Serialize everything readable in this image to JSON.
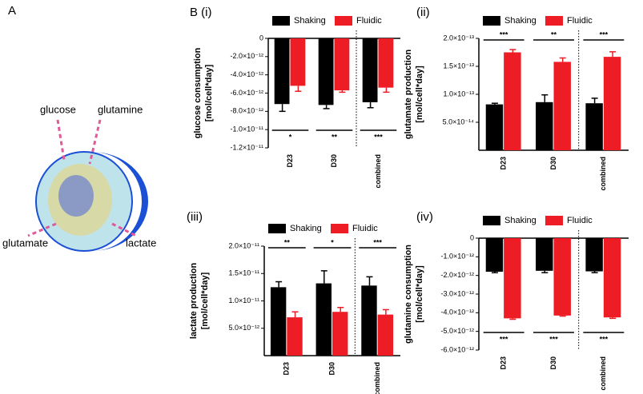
{
  "diagram": {
    "panel_label": "A",
    "inputs": [
      "glucose",
      "glutamine"
    ],
    "outputs": [
      "glutamate",
      "lactate"
    ]
  },
  "chart_data": [
    {
      "type": "bar",
      "panel_label": "B (i)",
      "ylabel": [
        "glucose consumption",
        "[mol/cell*day]"
      ],
      "categories": [
        "D23",
        "D30",
        "combined"
      ],
      "series": [
        {
          "name": "Shaking",
          "color": "#000000",
          "values": [
            -7.2e-12,
            -7.3e-12,
            -7e-12
          ],
          "errors": [
            8e-13,
            4e-13,
            6e-13
          ]
        },
        {
          "name": "Fluidic",
          "color": "#ee1c25",
          "values": [
            -5.2e-12,
            -5.7e-12,
            -5.4e-12
          ],
          "errors": [
            6e-13,
            2e-13,
            5e-13
          ]
        }
      ],
      "annotations": [
        "*",
        "**",
        "***"
      ],
      "ylim": [
        -1.2e-11,
        0
      ],
      "yticks": [
        0,
        {
          "value": -2e-12,
          "label": "-2.0×10⁻¹²"
        },
        {
          "value": -4e-12,
          "label": "-4.0×10⁻¹²"
        },
        {
          "value": -6e-12,
          "label": "-6.0×10⁻¹²"
        },
        {
          "value": -8e-12,
          "label": "-8.0×10⁻¹²"
        },
        {
          "value": -1e-11,
          "label": "-1.0×10⁻¹¹"
        },
        {
          "value": -1.2e-11,
          "label": "-1.2×10⁻¹¹"
        }
      ]
    },
    {
      "type": "bar",
      "panel_label": "(ii)",
      "ylabel": [
        "glutamate production",
        "[mol/cell*day]"
      ],
      "categories": [
        "D23",
        "D30",
        "combined"
      ],
      "series": [
        {
          "name": "Shaking",
          "color": "#000000",
          "values": [
            8.2e-14,
            8.6e-14,
            8.4e-14
          ],
          "errors": [
            2e-15,
            1.3e-14,
            9e-15
          ]
        },
        {
          "name": "Fluidic",
          "color": "#ee1c25",
          "values": [
            1.75e-13,
            1.58e-13,
            1.67e-13
          ],
          "errors": [
            5e-15,
            7e-15,
            9e-15
          ]
        }
      ],
      "annotations": [
        "***",
        "**",
        "***"
      ],
      "ylim": [
        0,
        2e-13
      ],
      "yticks": [
        {
          "value": 5e-14,
          "label": "5.0×10⁻¹⁴"
        },
        {
          "value": 1e-13,
          "label": "1.0×10⁻¹³"
        },
        {
          "value": 1.5e-13,
          "label": "1.5×10⁻¹³"
        },
        {
          "value": 2e-13,
          "label": "2.0×10⁻¹³"
        }
      ]
    },
    {
      "type": "bar",
      "panel_label": "(iii)",
      "ylabel": [
        "lactate production",
        "[mol/cell*day]"
      ],
      "categories": [
        "D23",
        "D30",
        "combined"
      ],
      "series": [
        {
          "name": "Shaking",
          "color": "#000000",
          "values": [
            1.25e-11,
            1.32e-11,
            1.28e-11
          ],
          "errors": [
            1e-12,
            2.3e-12,
            1.6e-12
          ]
        },
        {
          "name": "Fluidic",
          "color": "#ee1c25",
          "values": [
            7e-12,
            8e-12,
            7.5e-12
          ],
          "errors": [
            1e-12,
            8e-13,
            9e-13
          ]
        }
      ],
      "annotations": [
        "**",
        "*",
        "***"
      ],
      "ylim": [
        0,
        2e-11
      ],
      "yticks": [
        {
          "value": 5e-12,
          "label": "5.0×10⁻¹²"
        },
        {
          "value": 1e-11,
          "label": "1.0×10⁻¹¹"
        },
        {
          "value": 1.5e-11,
          "label": "1.5×10⁻¹¹"
        },
        {
          "value": 2e-11,
          "label": "2.0×10⁻¹¹"
        }
      ]
    },
    {
      "type": "bar",
      "panel_label": "(iv)",
      "ylabel": [
        "glutamine consumption",
        "[mol/cell*day]"
      ],
      "categories": [
        "D23",
        "D30",
        "combined"
      ],
      "series": [
        {
          "name": "Shaking",
          "color": "#000000",
          "values": [
            -1.8e-12,
            -1.75e-12,
            -1.78e-12
          ],
          "errors": [
            5e-14,
            1e-13,
            7e-14
          ]
        },
        {
          "name": "Fluidic",
          "color": "#ee1c25",
          "values": [
            -4.3e-12,
            -4.15e-12,
            -4.25e-12
          ],
          "errors": [
            5e-14,
            3e-14,
            5e-14
          ]
        }
      ],
      "annotations": [
        "***",
        "***",
        "***"
      ],
      "ylim": [
        -6e-12,
        0
      ],
      "yticks": [
        0,
        {
          "value": -1e-12,
          "label": "-1.0×10⁻¹²"
        },
        {
          "value": -2e-12,
          "label": "-2.0×10⁻¹²"
        },
        {
          "value": -3e-12,
          "label": "-3.0×10⁻¹²"
        },
        {
          "value": -4e-12,
          "label": "-4.0×10⁻¹²"
        },
        {
          "value": -5e-12,
          "label": "-5.0×10⁻¹²"
        },
        {
          "value": -6e-12,
          "label": "-6.0×10⁻¹²"
        }
      ]
    }
  ]
}
